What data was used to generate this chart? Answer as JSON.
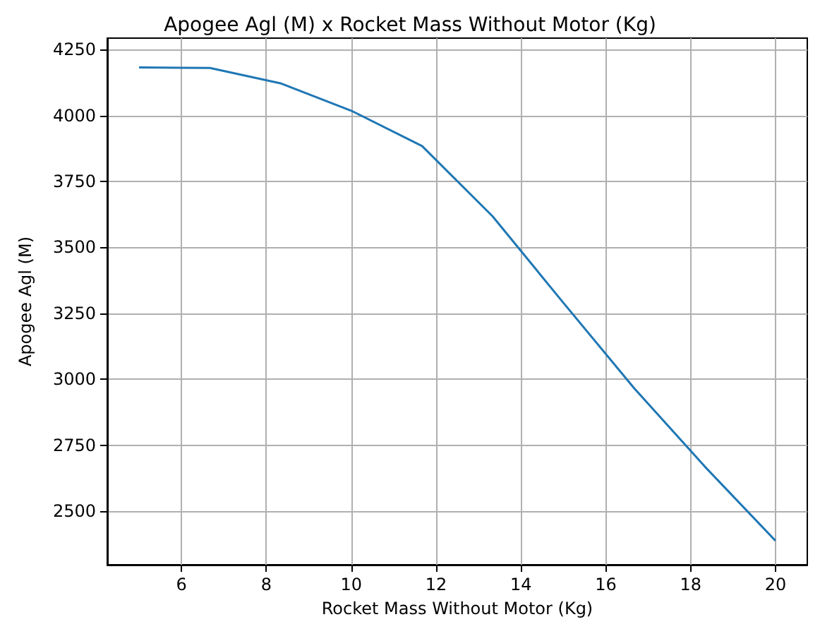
{
  "chart_data": {
    "type": "line",
    "title": "Apogee Agl (M) x Rocket Mass Without Motor (Kg)",
    "xlabel": "Rocket Mass Without Motor (Kg)",
    "ylabel": "Apogee Agl (M)",
    "x": [
      5,
      6.67,
      8.33,
      10,
      11.67,
      13.33,
      15,
      16.67,
      18.33,
      20
    ],
    "series": [
      {
        "color": "#1f77b4",
        "values": [
          4182,
          4180,
          4122,
          4018,
          3884,
          3618,
          3290,
          2966,
          2670,
          2388
        ]
      }
    ],
    "xlim": [
      4.25,
      20.75
    ],
    "xticks": [
      6,
      8,
      10,
      12,
      14,
      16,
      18,
      20
    ],
    "ylim": [
      2297,
      4293
    ],
    "yticks": [
      2500,
      2750,
      3000,
      3250,
      3500,
      3750,
      4000,
      4250
    ],
    "grid": true,
    "marker": "none",
    "line_style": "solid"
  }
}
